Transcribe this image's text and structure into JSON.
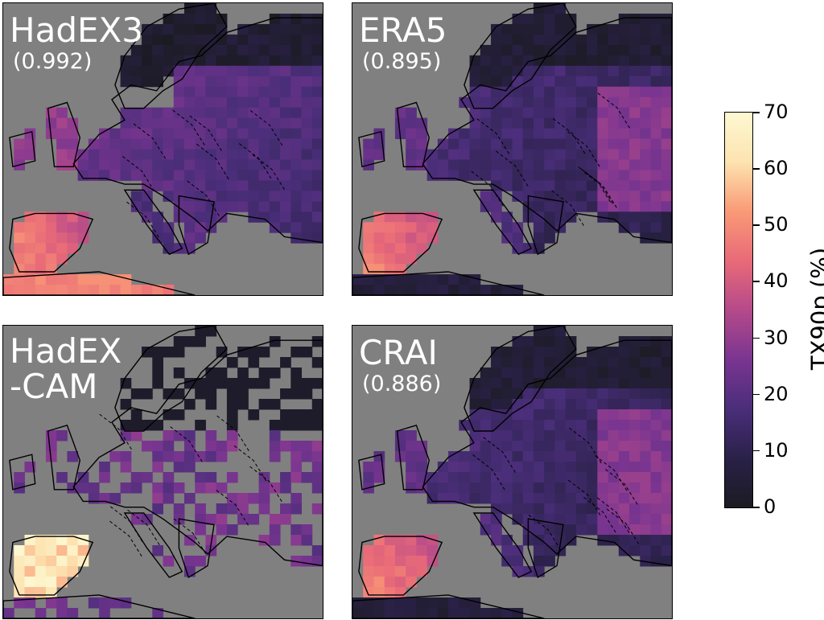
{
  "panels": [
    {
      "title": "HadEX3",
      "score": "(0.992)"
    },
    {
      "title": "ERA5",
      "score": "(0.895)"
    },
    {
      "title": "HadEX\n-CAM",
      "score": ""
    },
    {
      "title": "CRAI",
      "score": "(0.886)"
    }
  ],
  "colorbar": {
    "label": "TX90p (%)",
    "ticks": [
      "0",
      "10",
      "20",
      "30",
      "40",
      "50",
      "60",
      "70"
    ],
    "range": [
      0,
      70
    ],
    "colormap": [
      "#1b1b22",
      "#2a2148",
      "#4a2e7a",
      "#7a3590",
      "#b54a8a",
      "#e96a78",
      "#f99a76",
      "#fde3b0",
      "#fdf8d2"
    ]
  },
  "colors": {
    "ocean_nodata": "#808080",
    "border": "#000000"
  },
  "chart_data": {
    "type": "heatmap",
    "variable": "TX90p (%)",
    "range": [
      0,
      70
    ],
    "panels": [
      "HadEX3",
      "ERA5",
      "HadEX-CAM",
      "CRAI"
    ]
  }
}
